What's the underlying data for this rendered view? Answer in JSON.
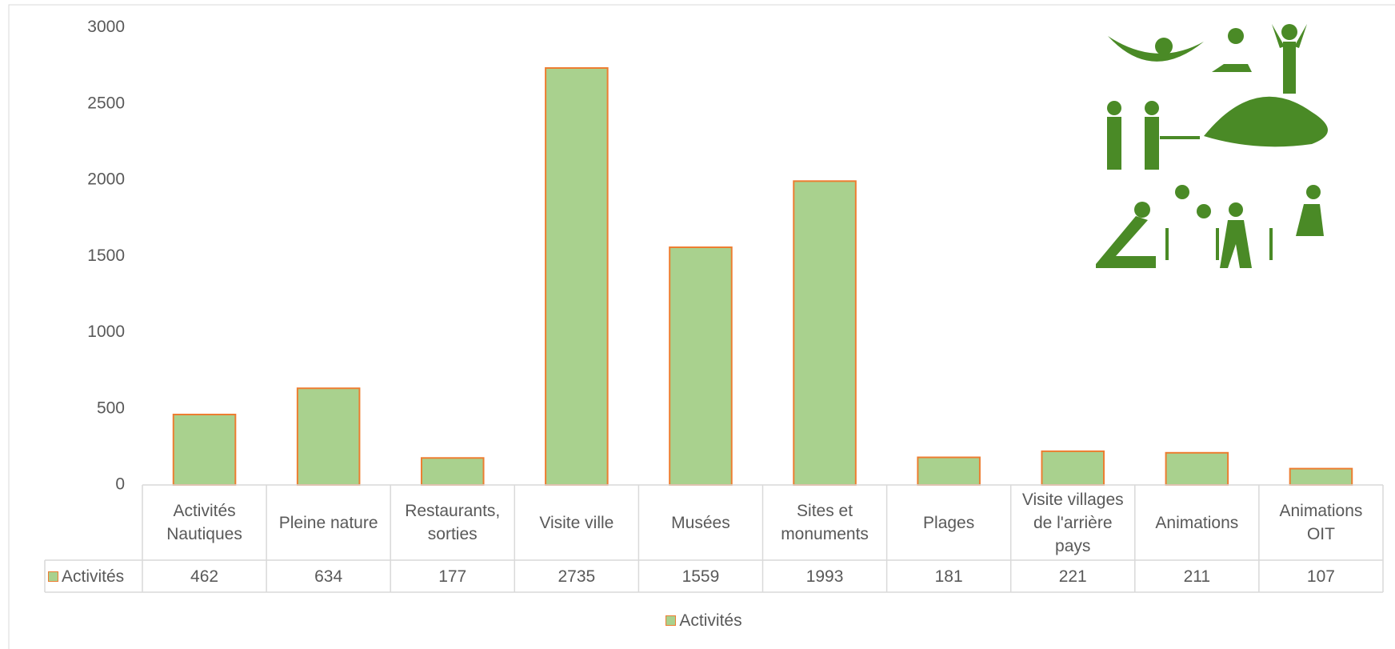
{
  "chart_data": {
    "type": "bar",
    "categories": [
      "Activités Nautiques",
      "Pleine nature",
      "Restaurants, sorties",
      "Visite ville",
      "Musées",
      "Sites et monuments",
      "Plages",
      "Visite villages de l'arrière pays",
      "Animations",
      "Animations OIT"
    ],
    "series": [
      {
        "name": "Activités",
        "color": "#a9d18e",
        "edge_color": "#ed7d31",
        "values": [
          462,
          634,
          177,
          2735,
          1559,
          1993,
          181,
          221,
          211,
          107
        ]
      }
    ],
    "ylim": [
      0,
      3000
    ],
    "yticks": [
      0,
      500,
      1000,
      1500,
      2000,
      2500,
      3000
    ],
    "grid": false,
    "data_table": true,
    "legend": "bottom"
  }
}
